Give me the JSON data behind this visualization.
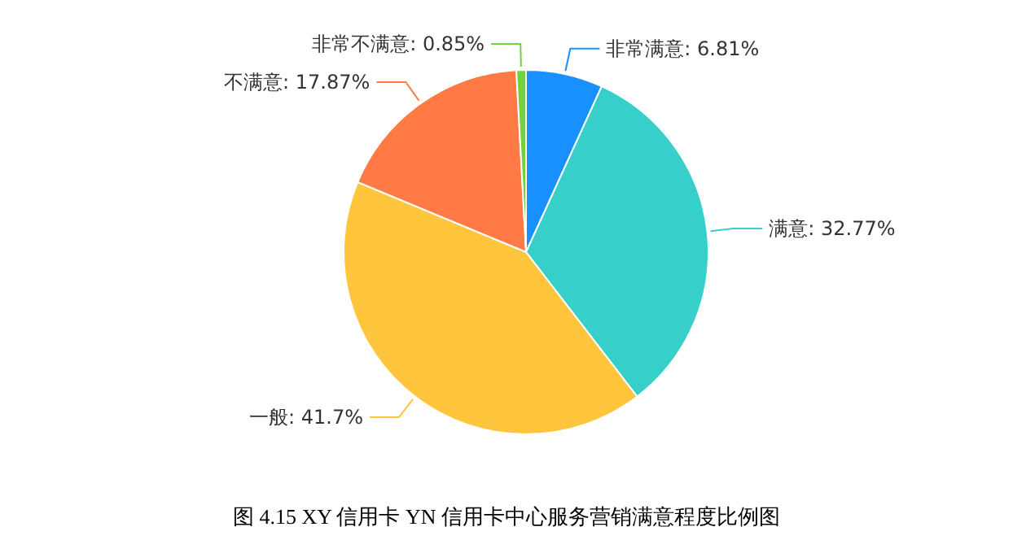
{
  "chart_data": {
    "type": "pie",
    "title": "图 4.15  XY 信用卡 YN 信用卡中心服务营销满意程度比例图",
    "categories": [
      "非常满意",
      "满意",
      "一般",
      "不满意",
      "非常不满意"
    ],
    "values": [
      6.81,
      32.77,
      41.7,
      17.87,
      0.85
    ],
    "value_labels": [
      "6.81%",
      "32.77%",
      "41.7%",
      "17.87%",
      "0.85%"
    ],
    "colors": [
      "#1890ff",
      "#36cfc9",
      "#ffc53d",
      "#ff7a45",
      "#73d13d"
    ]
  }
}
